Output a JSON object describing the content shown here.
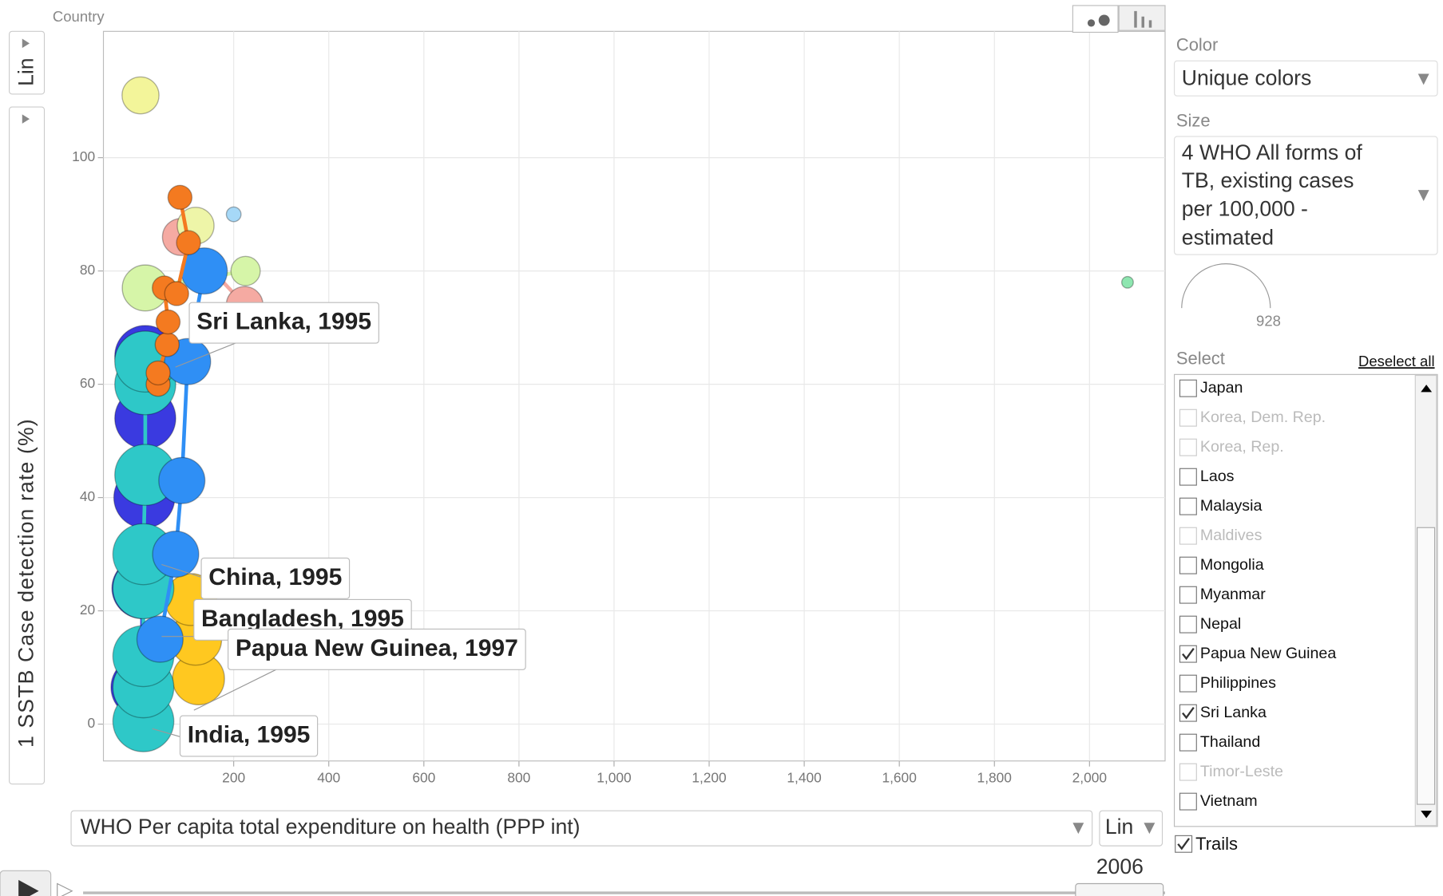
{
  "chart_data": {
    "type": "scatter",
    "legend_title": "Country",
    "xlabel": "WHO Per capita total expenditure on health (PPP int)",
    "ylabel": "1 SSTB Case detection rate (%)",
    "x_scale": "Lin",
    "y_scale": "Lin",
    "xlim": [
      -74,
      2159
    ],
    "ylim": [
      -6.5,
      122.3
    ],
    "xticks": [
      200,
      400,
      600,
      800,
      {
        "value": 1000,
        "label": "1,000"
      },
      {
        "value": 1200,
        "label": "1,200"
      },
      {
        "value": 1400,
        "label": "1,400"
      },
      {
        "value": 1600,
        "label": "1,600"
      },
      {
        "value": 1800,
        "label": "1,800"
      },
      {
        "value": 2000,
        "label": "2,000"
      }
    ],
    "yticks": [
      0,
      20,
      40,
      60,
      80,
      100
    ],
    "grid": true,
    "size_max": 928,
    "series": [
      {
        "color": "#f3f59a",
        "x": [
          4
        ],
        "y": [
          111
        ],
        "size": [
          303
        ]
      },
      {
        "color": "#a6d8f7",
        "x": [
          200
        ],
        "y": [
          90
        ],
        "size": [
          48
        ]
      },
      {
        "color": "#8ee6b0",
        "x": [
          2080
        ],
        "y": [
          78
        ],
        "size": [
          30
        ]
      },
      {
        "color": "#d6f5a8",
        "x": [
          225,
          14
        ],
        "y": [
          80,
          77
        ],
        "size": [
          190,
          470
        ]
      },
      {
        "color": "#f5aaa2",
        "x": [
          89,
          223
        ],
        "y": [
          86,
          74
        ],
        "size": [
          303,
          300
        ]
      },
      {
        "color": "#eef5a8",
        "x": [
          120
        ],
        "y": [
          88
        ],
        "size": [
          300
        ]
      },
      {
        "color": "#3a3ae0",
        "x": [
          6,
          8,
          12,
          14,
          14
        ],
        "y": [
          6.5,
          24,
          40,
          54,
          65
        ],
        "size": [
          826,
          826,
          826,
          826,
          826
        ]
      },
      {
        "color": "#ffc820",
        "x": [
          126,
          120,
          110
        ],
        "y": [
          8,
          15,
          22
        ],
        "size": [
          600,
          600,
          600
        ]
      },
      {
        "color": "#66cc66",
        "x": [
          14
        ],
        "y": [
          64
        ],
        "size": [
          500
        ]
      },
      {
        "color": "#2ec8c8",
        "x": [
          10,
          10,
          10,
          10,
          10,
          14,
          14,
          14
        ],
        "y": [
          0.5,
          6.5,
          12,
          24,
          30,
          44,
          60,
          64
        ],
        "size": [
          826,
          826,
          826,
          826,
          826,
          826,
          826,
          826
        ]
      },
      {
        "color": "#2f8ff5",
        "x": [
          45,
          78,
          91,
          103,
          138
        ],
        "y": [
          15,
          30,
          43,
          64,
          80
        ],
        "size": [
          473,
          473,
          473,
          473,
          473
        ]
      },
      {
        "color": "#f47a20",
        "x": [
          41,
          41,
          60,
          62,
          54,
          80,
          105,
          87
        ],
        "y": [
          60,
          62,
          67,
          71,
          77,
          76,
          85,
          93
        ],
        "size": [
          128,
          128,
          128,
          128,
          128,
          128,
          128,
          128
        ]
      }
    ],
    "labels": [
      "Sri Lanka, 1995",
      "China, 1995",
      "Bangladesh, 1995",
      "Papua New Guinea, 1997",
      "India, 1995"
    ]
  },
  "controls": {
    "color_label": "Color",
    "color_value": "Unique colors",
    "size_label": "Size",
    "size_value": [
      "4 WHO All forms of",
      "TB, existing cases",
      "per 100,000 -",
      "estimated"
    ],
    "select_label": "Select",
    "deselect": "Deselect all",
    "countries": [
      {
        "name": "Japan",
        "checked": false,
        "enabled": true
      },
      {
        "name": "Korea, Dem. Rep.",
        "checked": false,
        "enabled": false
      },
      {
        "name": "Korea, Rep.",
        "checked": false,
        "enabled": false
      },
      {
        "name": "Laos",
        "checked": false,
        "enabled": true
      },
      {
        "name": "Malaysia",
        "checked": false,
        "enabled": true
      },
      {
        "name": "Maldives",
        "checked": false,
        "enabled": false
      },
      {
        "name": "Mongolia",
        "checked": false,
        "enabled": true
      },
      {
        "name": "Myanmar",
        "checked": false,
        "enabled": true
      },
      {
        "name": "Nepal",
        "checked": false,
        "enabled": true
      },
      {
        "name": "Papua New Guinea",
        "checked": true,
        "enabled": true
      },
      {
        "name": "Philippines",
        "checked": false,
        "enabled": true
      },
      {
        "name": "Sri Lanka",
        "checked": true,
        "enabled": true
      },
      {
        "name": "Thailand",
        "checked": false,
        "enabled": true
      },
      {
        "name": "Timor-Leste",
        "checked": false,
        "enabled": false
      },
      {
        "name": "Vietnam",
        "checked": false,
        "enabled": true
      }
    ],
    "trails_label": "Trails",
    "trails": true,
    "year": "2006"
  }
}
